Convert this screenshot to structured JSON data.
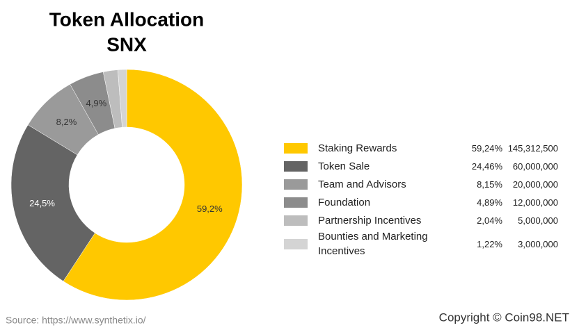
{
  "chart_data": {
    "type": "donut",
    "title": "Token Allocation",
    "subtitle": "SNX",
    "categories": [
      "Staking Rewards",
      "Token Sale",
      "Team and Advisors",
      "Foundation",
      "Partnership Incentives",
      "Bounties and Marketing Incentives"
    ],
    "values": [
      59.24,
      24.46,
      8.15,
      4.89,
      2.04,
      1.22
    ],
    "value_labels": [
      "59,2%",
      "24,5%",
      "8,2%",
      "4,9%",
      null,
      null
    ],
    "colors": [
      "#ffc800",
      "#646464",
      "#9a9a9a",
      "#8c8c8c",
      "#bdbdbd",
      "#d4d4d4"
    ],
    "percent_labels": [
      "59,24%",
      "24,46%",
      "8,15%",
      "4,89%",
      "2,04%",
      "1,22%"
    ],
    "token_amounts": [
      "145,312,500",
      "60,000,000",
      "20,000,000",
      "12,000,000",
      "5,000,000",
      "3,000,000"
    ],
    "source": "Source: https://www.synthetix.io/",
    "copyright": "Copyright © Coin98.NET"
  }
}
